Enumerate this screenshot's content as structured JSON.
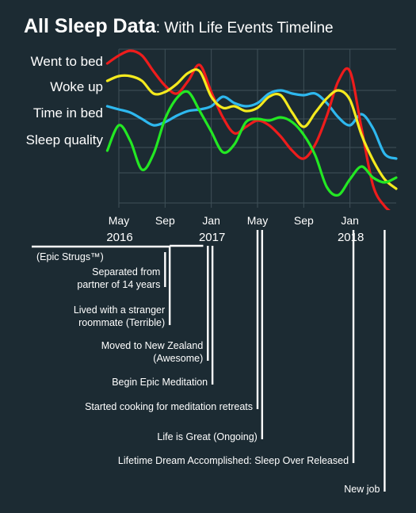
{
  "title": {
    "main": "All Sleep Data",
    "sub": ": With Life Events Timeline"
  },
  "chart_data": {
    "type": "line",
    "title": "All Sleep Data: With Life Events Timeline",
    "x_range": [
      "2016-05",
      "2018-05"
    ],
    "x_ticks": [
      {
        "month": "May",
        "year": "2016",
        "at": 0
      },
      {
        "month": "Sep",
        "year": "",
        "at": 4
      },
      {
        "month": "Jan",
        "year": "2017",
        "at": 8
      },
      {
        "month": "May",
        "year": "",
        "at": 12
      },
      {
        "month": "Sep",
        "year": "",
        "at": 16
      },
      {
        "month": "Jan",
        "year": "2018",
        "at": 20
      }
    ],
    "x_max": 24,
    "y_range": [
      0,
      1
    ],
    "grid": true,
    "series": [
      {
        "name": "Went to bed",
        "color": "#ee1c1c",
        "points": [
          [
            -1,
            0.91
          ],
          [
            0,
            0.96
          ],
          [
            1,
            0.99
          ],
          [
            2,
            0.96
          ],
          [
            3,
            0.86
          ],
          [
            4,
            0.77
          ],
          [
            5,
            0.72
          ],
          [
            6,
            0.8
          ],
          [
            7,
            0.9
          ],
          [
            8,
            0.73
          ],
          [
            9,
            0.57
          ],
          [
            10,
            0.47
          ],
          [
            11,
            0.51
          ],
          [
            12,
            0.55
          ],
          [
            13,
            0.52
          ],
          [
            14,
            0.45
          ],
          [
            15,
            0.36
          ],
          [
            16,
            0.31
          ],
          [
            17,
            0.4
          ],
          [
            18,
            0.58
          ],
          [
            19,
            0.8
          ],
          [
            20,
            0.86
          ],
          [
            21,
            0.5
          ],
          [
            22,
            0.14
          ],
          [
            23,
            0.01
          ],
          [
            24,
            -0.05
          ]
        ]
      },
      {
        "name": "Woke up",
        "color": "#f4ea1e",
        "points": [
          [
            -1,
            0.8
          ],
          [
            0,
            0.83
          ],
          [
            1,
            0.83
          ],
          [
            2,
            0.8
          ],
          [
            3,
            0.72
          ],
          [
            4,
            0.73
          ],
          [
            5,
            0.78
          ],
          [
            6,
            0.85
          ],
          [
            7,
            0.86
          ],
          [
            8,
            0.7
          ],
          [
            9,
            0.63
          ],
          [
            10,
            0.64
          ],
          [
            11,
            0.61
          ],
          [
            12,
            0.63
          ],
          [
            13,
            0.7
          ],
          [
            14,
            0.71
          ],
          [
            15,
            0.6
          ],
          [
            16,
            0.51
          ],
          [
            17,
            0.6
          ],
          [
            18,
            0.69
          ],
          [
            19,
            0.74
          ],
          [
            20,
            0.68
          ],
          [
            21,
            0.46
          ],
          [
            22,
            0.3
          ],
          [
            23,
            0.18
          ],
          [
            24,
            0.12
          ]
        ]
      },
      {
        "name": "Time in bed",
        "color": "#2eb8ef",
        "points": [
          [
            -1,
            0.64
          ],
          [
            0,
            0.62
          ],
          [
            1,
            0.6
          ],
          [
            2,
            0.56
          ],
          [
            3,
            0.52
          ],
          [
            4,
            0.54
          ],
          [
            5,
            0.58
          ],
          [
            6,
            0.61
          ],
          [
            7,
            0.62
          ],
          [
            8,
            0.64
          ],
          [
            9,
            0.7
          ],
          [
            10,
            0.66
          ],
          [
            11,
            0.64
          ],
          [
            12,
            0.66
          ],
          [
            13,
            0.72
          ],
          [
            14,
            0.74
          ],
          [
            15,
            0.72
          ],
          [
            16,
            0.71
          ],
          [
            17,
            0.72
          ],
          [
            18,
            0.66
          ],
          [
            19,
            0.57
          ],
          [
            20,
            0.52
          ],
          [
            21,
            0.59
          ],
          [
            22,
            0.5
          ],
          [
            23,
            0.34
          ],
          [
            24,
            0.31
          ]
        ]
      },
      {
        "name": "Sleep quality",
        "color": "#23e823",
        "points": [
          [
            -1,
            0.36
          ],
          [
            0,
            0.52
          ],
          [
            1,
            0.42
          ],
          [
            2,
            0.24
          ],
          [
            3,
            0.34
          ],
          [
            4,
            0.56
          ],
          [
            5,
            0.69
          ],
          [
            6,
            0.73
          ],
          [
            7,
            0.61
          ],
          [
            8,
            0.48
          ],
          [
            9,
            0.35
          ],
          [
            10,
            0.4
          ],
          [
            11,
            0.54
          ],
          [
            12,
            0.56
          ],
          [
            13,
            0.55
          ],
          [
            14,
            0.57
          ],
          [
            15,
            0.54
          ],
          [
            16,
            0.46
          ],
          [
            17,
            0.33
          ],
          [
            18,
            0.13
          ],
          [
            19,
            0.08
          ],
          [
            20,
            0.18
          ],
          [
            21,
            0.26
          ],
          [
            22,
            0.19
          ],
          [
            23,
            0.16
          ],
          [
            24,
            0.19
          ]
        ]
      }
    ],
    "events": [
      {
        "label": "(Epic Strugs™)",
        "kind": "bracket",
        "start": -2.5,
        "end": 4.4
      },
      {
        "label": "Separated from|partner of 14 years",
        "at": 4.0
      },
      {
        "label": "Lived with a stranger|roommate (Terrible)",
        "at": 4.4,
        "bracket_to": 7.3
      },
      {
        "label": "Moved to New Zealand|(Awesome)",
        "at": 7.7
      },
      {
        "label": "Begin Epic Meditation",
        "at": 8.1
      },
      {
        "label": "Started cooking for meditation retreats",
        "at": 12.0
      },
      {
        "label": "Life is Great (Ongoing)",
        "at": 12.4
      },
      {
        "label": "Lifetime Dream Accomplished: Sleep Over Released",
        "at": 20.3
      },
      {
        "label": "New job",
        "at": 23.0
      }
    ]
  }
}
